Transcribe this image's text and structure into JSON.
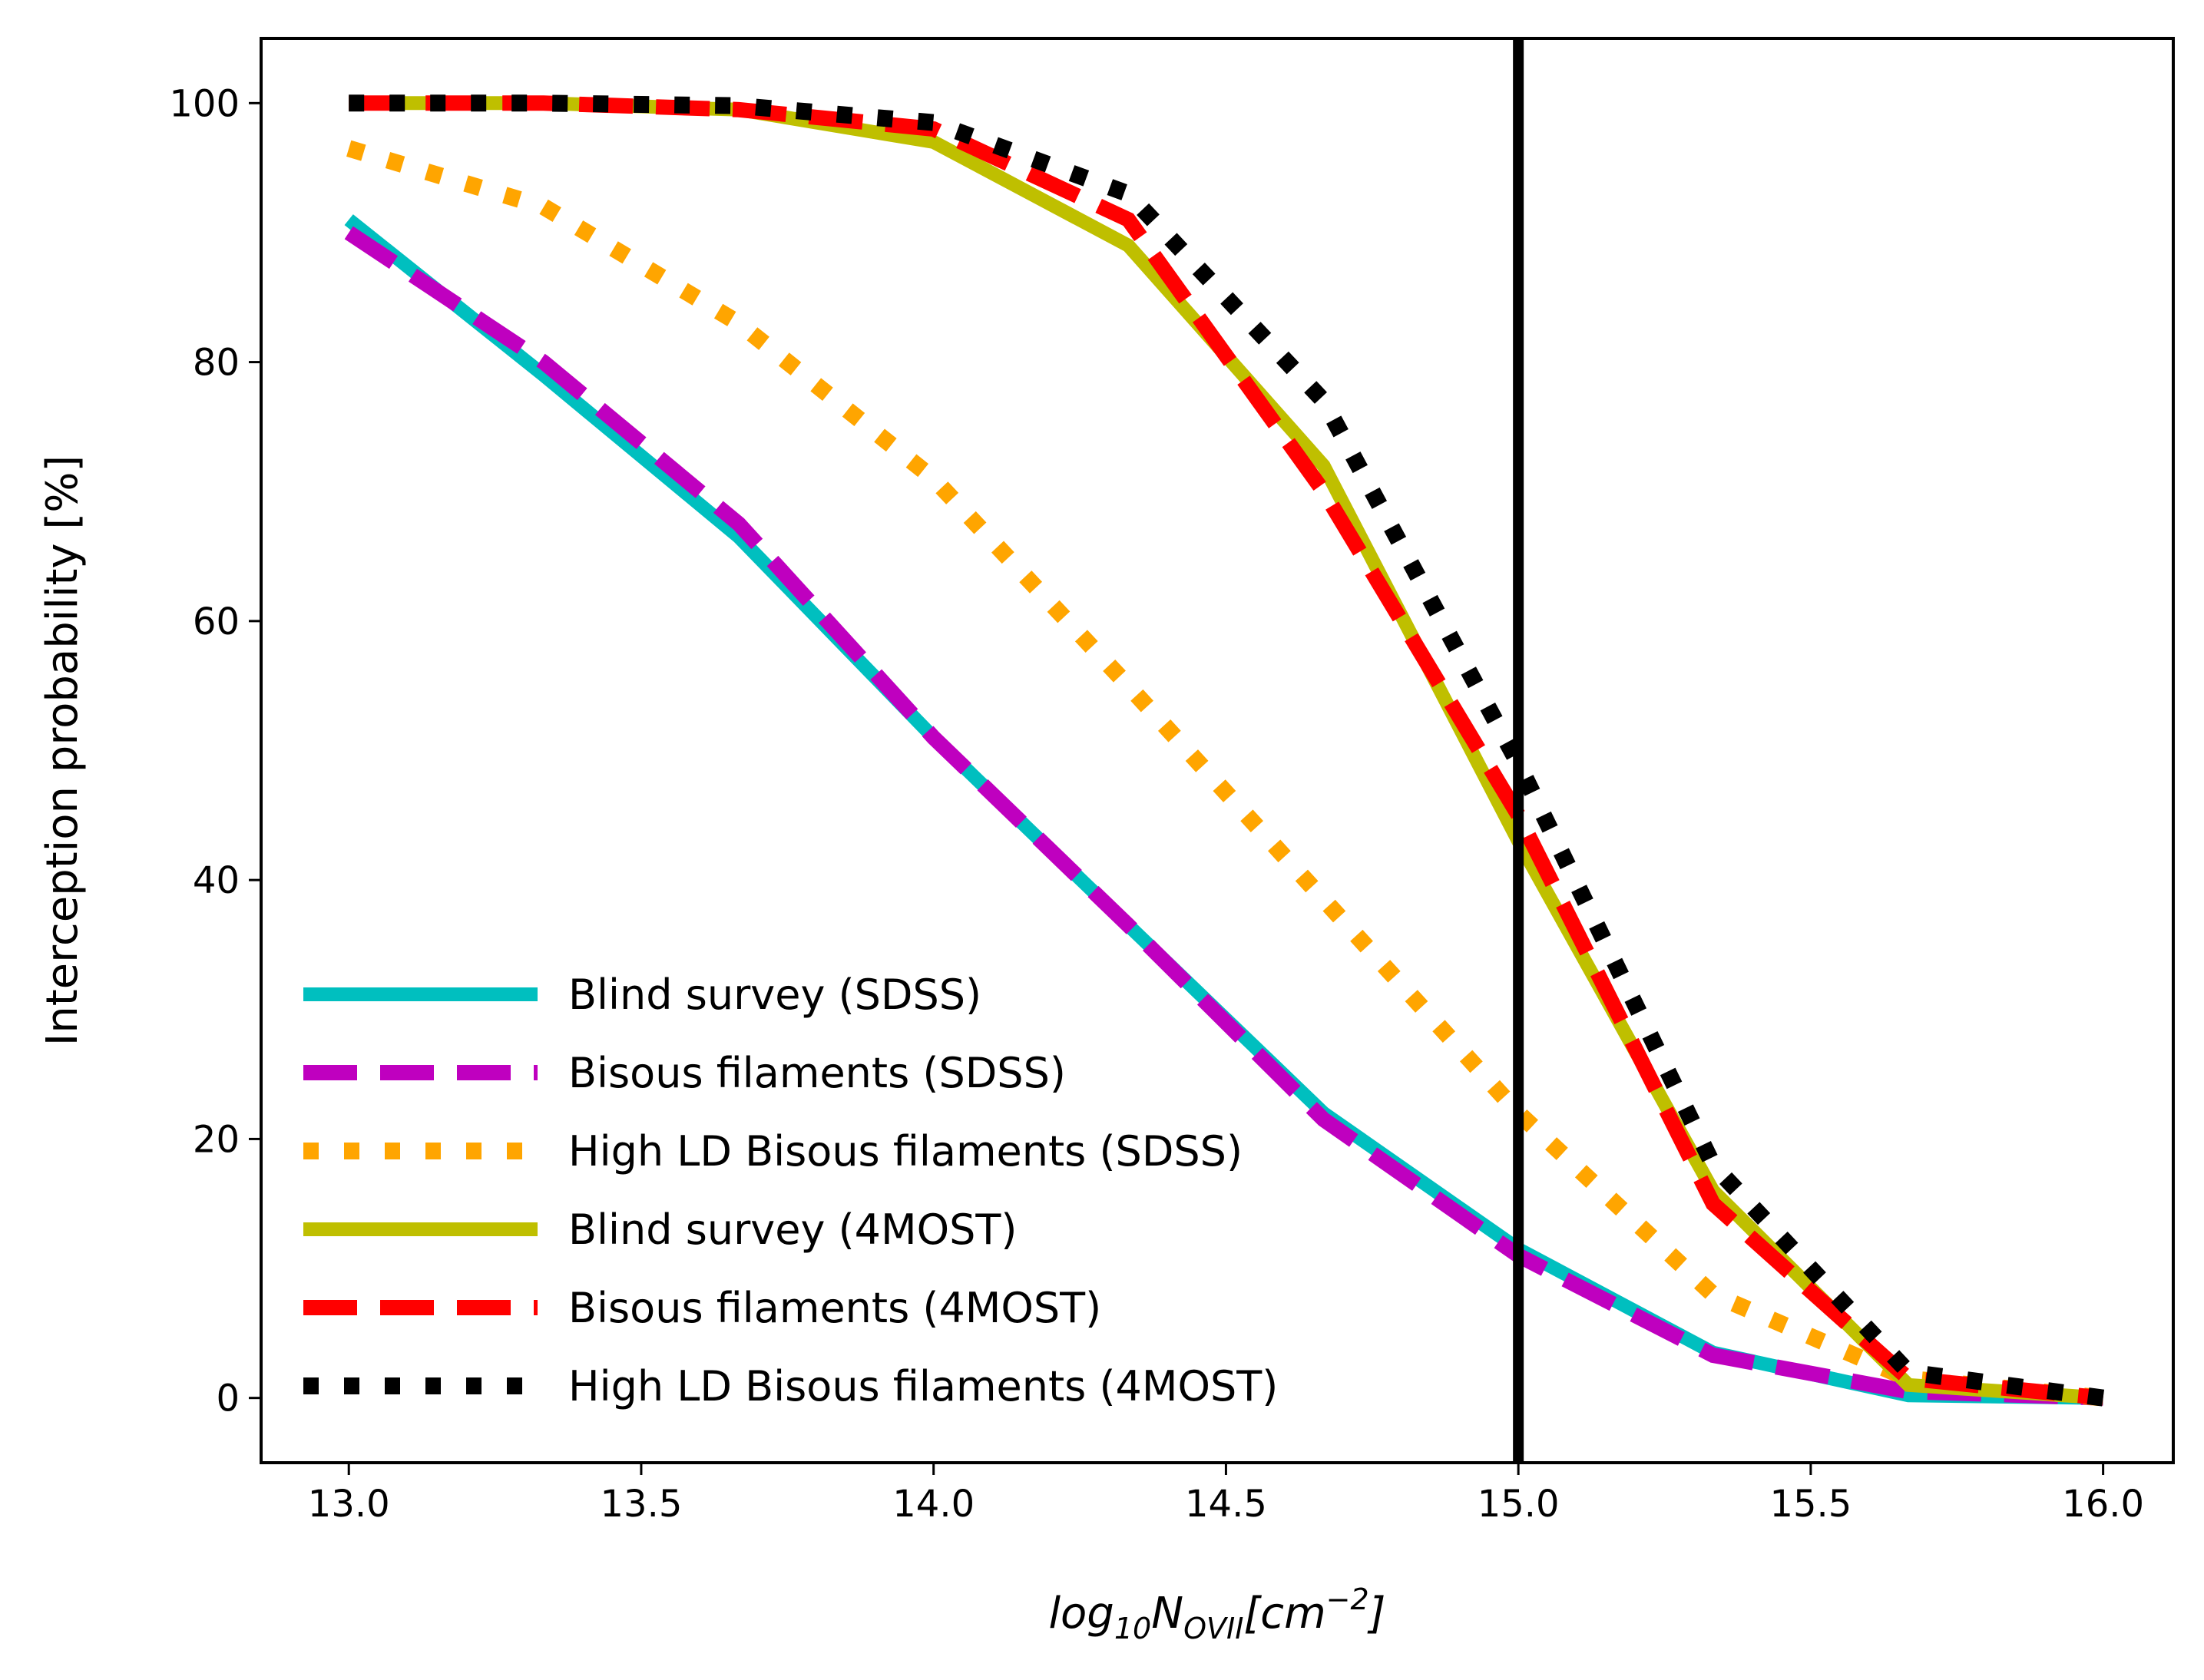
{
  "chart_data": {
    "type": "line",
    "title": "",
    "xlabel": {
      "base": "log",
      "base_sub": "10",
      "main": "N",
      "main_sub": "OVII",
      "unit_open": "[cm",
      "unit_sup": "−2",
      "unit_close": "]"
    },
    "ylabel": "Interception probability [%]",
    "xlim": [
      12.85,
      16.12
    ],
    "ylim": [
      -5,
      105
    ],
    "xticks": [
      13.0,
      13.5,
      14.0,
      14.5,
      15.0,
      15.5,
      16.0
    ],
    "xtick_labels": [
      "13.0",
      "13.5",
      "14.0",
      "14.5",
      "15.0",
      "15.5",
      "16.0"
    ],
    "yticks": [
      0,
      20,
      40,
      60,
      80,
      100
    ],
    "ytick_labels": [
      "0",
      "20",
      "40",
      "60",
      "80",
      "100"
    ],
    "vertical_line": {
      "x": 15.0,
      "color": "#000000"
    },
    "legend_position": "lower-left",
    "series": [
      {
        "name": "Blind survey (SDSS)",
        "color": "#00bfbf",
        "style": "solid",
        "x": [
          13.0,
          13.333,
          13.667,
          14.0,
          14.333,
          14.667,
          15.0,
          15.333,
          15.667,
          16.0
        ],
        "y": [
          91,
          79,
          66.5,
          51,
          36.5,
          22,
          11.5,
          3.5,
          0.2,
          0
        ]
      },
      {
        "name": "Bisous filaments (SDSS)",
        "color": "#bf00bf",
        "style": "dashed",
        "x": [
          13.0,
          13.333,
          13.667,
          14.0,
          14.333,
          14.667,
          15.0,
          15.333,
          15.667,
          16.0
        ],
        "y": [
          90,
          80,
          67.5,
          51,
          36.5,
          21.5,
          11,
          3.3,
          0.5,
          0
        ]
      },
      {
        "name": "High LD Bisous filaments (SDSS)",
        "color": "#ffa500",
        "style": "dotted",
        "x": [
          13.0,
          13.333,
          13.667,
          14.0,
          14.333,
          14.667,
          15.0,
          15.333,
          15.667,
          16.0
        ],
        "y": [
          96.5,
          92,
          83,
          71,
          55,
          38.5,
          22,
          8,
          1.5,
          0
        ]
      },
      {
        "name": "Blind survey (4MOST)",
        "color": "#bfbf00",
        "style": "solid",
        "x": [
          13.0,
          13.333,
          13.667,
          14.0,
          14.333,
          14.667,
          15.0,
          15.333,
          15.667,
          16.0
        ],
        "y": [
          100,
          100,
          99.5,
          97,
          89,
          72,
          43,
          16,
          1,
          0
        ]
      },
      {
        "name": "Bisous filaments (4MOST)",
        "color": "#ff0000",
        "style": "dashed",
        "x": [
          13.0,
          13.333,
          13.667,
          14.0,
          14.333,
          14.667,
          15.0,
          15.333,
          15.667,
          16.0
        ],
        "y": [
          100,
          100,
          99.5,
          98,
          91,
          70,
          45,
          15,
          1.5,
          0
        ]
      },
      {
        "name": "High LD Bisous filaments (4MOST)",
        "color": "#000000",
        "style": "dotted",
        "x": [
          13.0,
          13.333,
          13.667,
          14.0,
          14.333,
          14.667,
          15.0,
          15.333,
          15.667,
          16.0
        ],
        "y": [
          100,
          100,
          99.8,
          98.5,
          93,
          77,
          49,
          18,
          2,
          0
        ]
      }
    ]
  }
}
